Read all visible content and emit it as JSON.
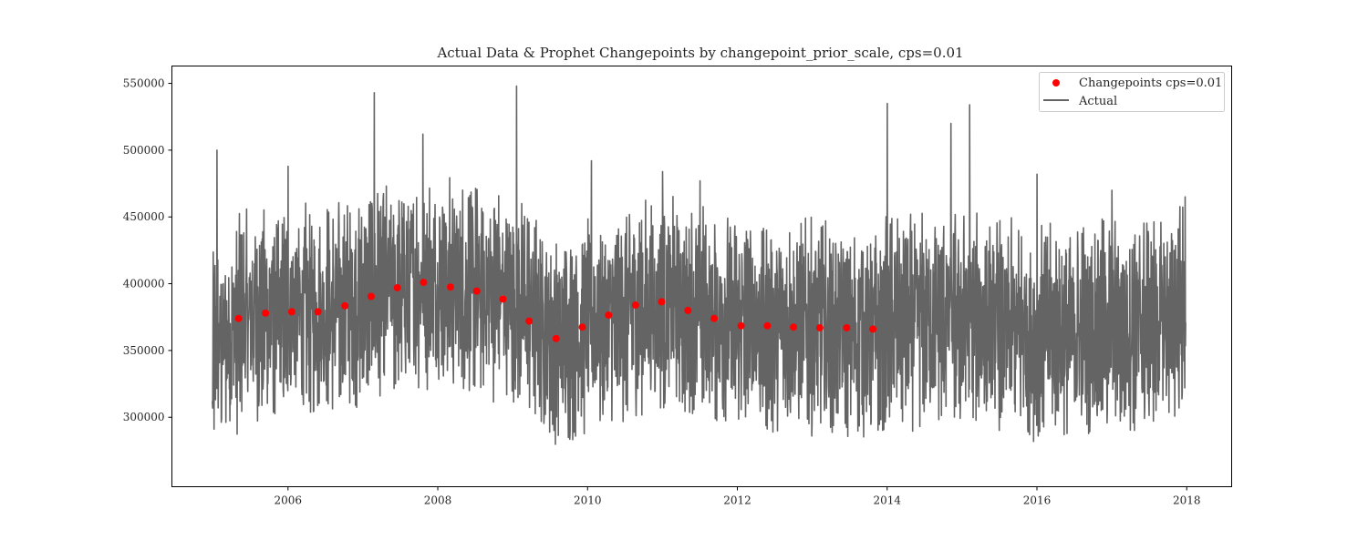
{
  "chart_data": {
    "type": "line",
    "title": "Actual Data & Prophet Changepoints by changepoint_prior_scale, cps=0.01",
    "xlabel": "",
    "ylabel": "",
    "xlim": [
      2004.45,
      2018.6
    ],
    "ylim": [
      248000,
      563000
    ],
    "x_ticks": [
      2006,
      2008,
      2010,
      2012,
      2014,
      2016,
      2018
    ],
    "x_tick_labels": [
      "2006",
      "2008",
      "2010",
      "2012",
      "2014",
      "2016",
      "2018"
    ],
    "y_ticks": [
      300000,
      350000,
      400000,
      450000,
      500000,
      550000
    ],
    "y_tick_labels": [
      "300000",
      "350000",
      "400000",
      "450000",
      "500000",
      "550000"
    ],
    "grid": false,
    "legend_position": "top-right",
    "series": [
      {
        "name": "Changepoints cps=0.01",
        "kind": "scatter",
        "color": "#ff0000",
        "x": [
          2005.34,
          2005.7,
          2006.05,
          2006.4,
          2006.76,
          2007.11,
          2007.46,
          2007.81,
          2008.17,
          2008.52,
          2008.87,
          2009.22,
          2009.58,
          2009.93,
          2010.28,
          2010.64,
          2010.99,
          2011.34,
          2011.69,
          2012.05,
          2012.4,
          2012.75,
          2013.1,
          2013.46,
          2013.81
        ],
        "y": [
          374000,
          378000,
          379000,
          379000,
          383500,
          390500,
          397000,
          401000,
          397500,
          394500,
          388500,
          372000,
          359000,
          367500,
          376500,
          384000,
          386500,
          380000,
          374000,
          368500,
          368500,
          367500,
          367000,
          367000,
          366000
        ]
      },
      {
        "name": "Actual",
        "kind": "line",
        "color": "#646464",
        "x_start": 2004.99,
        "x_end": 2017.99,
        "points_per_year": 260,
        "anchor_x": [
          2004.99,
          2005.4,
          2006.0,
          2006.6,
          2007.2,
          2007.8,
          2008.4,
          2009.0,
          2009.6,
          2010.2,
          2010.8,
          2011.4,
          2012.0,
          2012.6,
          2013.2,
          2013.8,
          2014.4,
          2015.0,
          2015.6,
          2016.2,
          2016.8,
          2017.4,
          2017.99
        ],
        "anchor_mean": [
          350000,
          372000,
          378000,
          380000,
          392000,
          402000,
          396000,
          390000,
          360000,
          370000,
          385000,
          380000,
          370000,
          367000,
          366000,
          366000,
          372000,
          372000,
          366000,
          362000,
          366000,
          368000,
          380000
        ],
        "amplitude": 58000,
        "y_min": 265000,
        "y_max": 548000,
        "peak_x": [
          2005.05,
          2006.0,
          2007.15,
          2007.8,
          2009.05,
          2010.05,
          2011.0,
          2011.5,
          2014.0,
          2014.85,
          2015.1,
          2016.0,
          2017.0,
          2017.98
        ],
        "peak_y": [
          500000,
          488000,
          543000,
          512000,
          548000,
          492000,
          484000,
          477000,
          535000,
          520000,
          534000,
          482000,
          470000,
          465000
        ]
      }
    ]
  }
}
